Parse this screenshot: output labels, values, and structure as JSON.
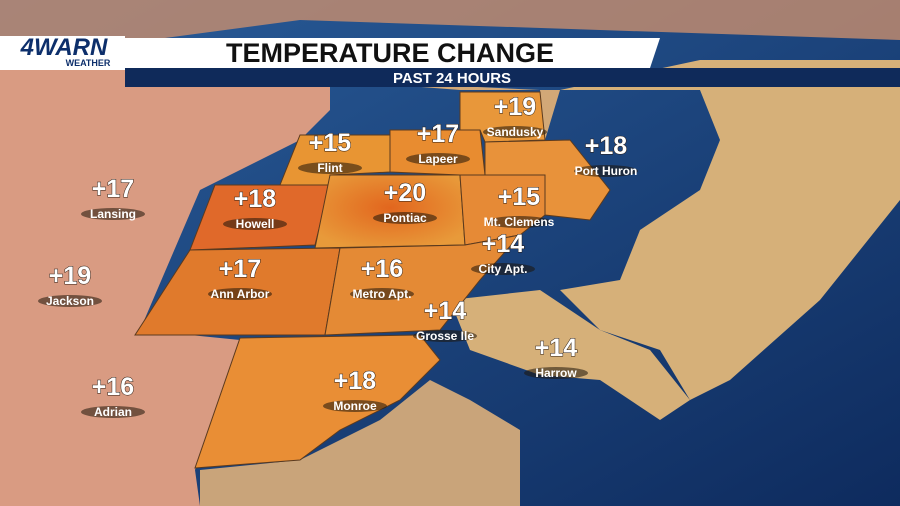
{
  "header": {
    "logo": "4WARN",
    "logo_sub": "WEATHER",
    "title": "TEMPERATURE CHANGE",
    "subtitle": "PAST 24 HOURS"
  },
  "locations": [
    {
      "name": "Sandusky",
      "change": "+19"
    },
    {
      "name": "Port Huron",
      "change": "+18"
    },
    {
      "name": "Lapeer",
      "change": "+17"
    },
    {
      "name": "Flint",
      "change": "+15"
    },
    {
      "name": "Lansing",
      "change": "+17"
    },
    {
      "name": "Howell",
      "change": "+18"
    },
    {
      "name": "Pontiac",
      "change": "+20"
    },
    {
      "name": "Mt. Clemens",
      "change": "+15"
    },
    {
      "name": "City Apt.",
      "change": "+14"
    },
    {
      "name": "Jackson",
      "change": "+19"
    },
    {
      "name": "Ann Arbor",
      "change": "+17"
    },
    {
      "name": "Metro Apt.",
      "change": "+16"
    },
    {
      "name": "Grosse Ile",
      "change": "+14"
    },
    {
      "name": "Harrow",
      "change": "+14"
    },
    {
      "name": "Adrian",
      "change": "+16"
    },
    {
      "name": "Monroe",
      "change": "+18"
    }
  ]
}
